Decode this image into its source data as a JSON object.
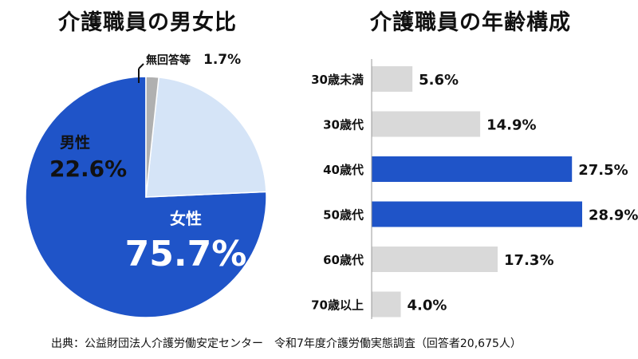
{
  "titles": {
    "left": "介護職員の男女比",
    "right": "介護職員の年齢構成"
  },
  "source": "出典：公益財団法人介護労働安定センター　令和7年度介護労働実態調査（回答者20,675人）",
  "colors": {
    "blue": "#1f54c8",
    "light_blue": "#d5e4f7",
    "gray": "#b0b0b0",
    "bar_gray": "#d9d9d9"
  },
  "chart_data": [
    {
      "type": "pie",
      "title": "介護職員の男女比",
      "slices": [
        {
          "label": "女性",
          "value": 75.7,
          "value_label": "75.7%",
          "color": "#1f54c8"
        },
        {
          "label": "男性",
          "value": 22.6,
          "value_label": "22.6%",
          "color": "#d5e4f7"
        },
        {
          "label": "無回答等",
          "value": 1.7,
          "value_label": "1.7%",
          "color": "#b0b0b0"
        }
      ]
    },
    {
      "type": "bar",
      "orientation": "horizontal",
      "title": "介護職員の年齢構成",
      "categories": [
        "30歳未満",
        "30歳代",
        "40歳代",
        "50歳代",
        "60歳代",
        "70歳以上"
      ],
      "values": [
        5.6,
        14.9,
        27.5,
        28.9,
        17.3,
        4.0
      ],
      "value_labels": [
        "5.6%",
        "14.9%",
        "27.5%",
        "28.9%",
        "17.3%",
        "4.0%"
      ],
      "highlighted": [
        "40歳代",
        "50歳代"
      ],
      "grid": false
    }
  ]
}
